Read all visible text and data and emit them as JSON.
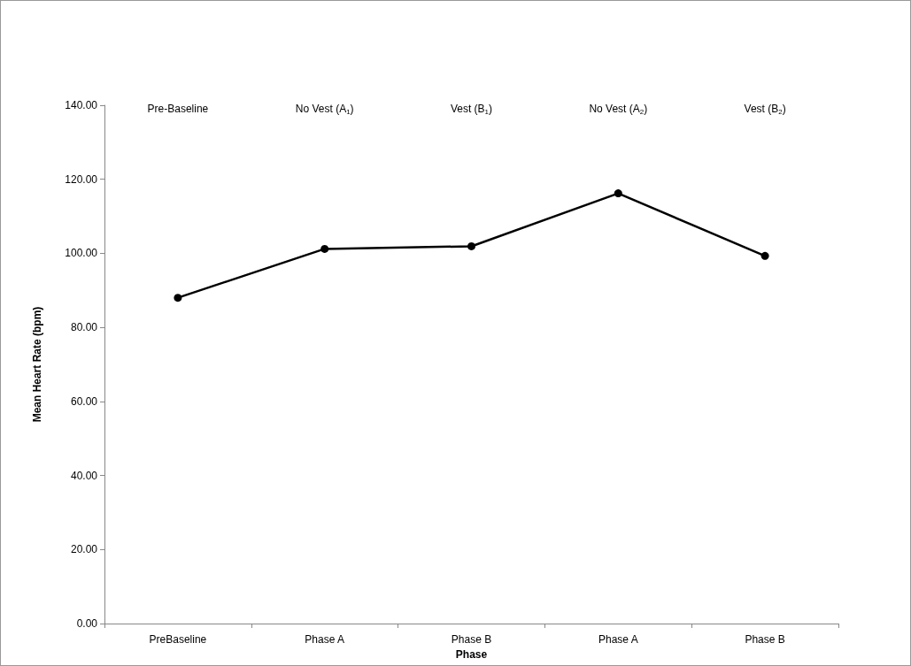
{
  "chart_data": {
    "type": "line",
    "xlabel": "Phase",
    "ylabel": "Mean Heart Rate (bpm)",
    "categories": [
      "PreBaseline",
      "Phase A",
      "Phase B",
      "Phase A",
      "Phase B"
    ],
    "series": [
      {
        "color": "#000000",
        "values": [
          88,
          101.2,
          101.9,
          116.2,
          99.3
        ]
      }
    ],
    "ylim": [
      0,
      140
    ],
    "yticks": [
      {
        "value": 0,
        "label": "0.00"
      },
      {
        "value": 20,
        "label": "20.00"
      },
      {
        "value": 40,
        "label": "40.00"
      },
      {
        "value": 60,
        "label": "60.00"
      },
      {
        "value": 80,
        "label": "80.00"
      },
      {
        "value": 100,
        "label": "100.00"
      },
      {
        "value": 120,
        "label": "120.00"
      },
      {
        "value": 140,
        "label": "140.00"
      }
    ],
    "annotations": [
      "Pre-Baseline",
      "No Vest (A$_{1}$)",
      "Vest (B$_{1}$)",
      "No Vest (A$_{2}$)",
      "Vest (B$_{2}$)"
    ],
    "grid": false,
    "marker": "circle",
    "line_style": "solid"
  }
}
